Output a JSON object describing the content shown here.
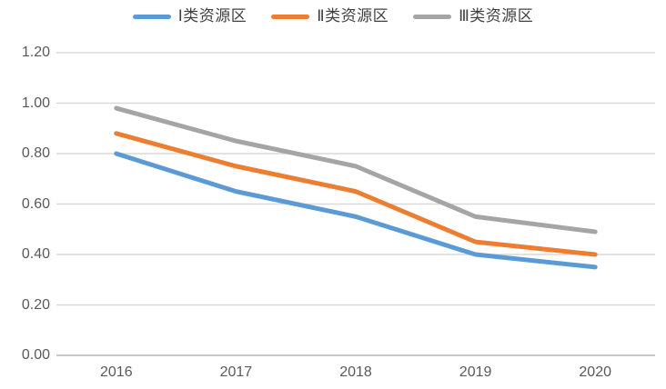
{
  "chart_data": {
    "type": "line",
    "title": "",
    "xlabel": "",
    "ylabel": "",
    "categories": [
      "2016",
      "2017",
      "2018",
      "2019",
      "2020"
    ],
    "series": [
      {
        "name": "Ⅰ类资源区",
        "color": "#5B9BD5",
        "values": [
          0.8,
          0.65,
          0.55,
          0.4,
          0.35
        ]
      },
      {
        "name": "Ⅱ类资源区",
        "color": "#ED7D31",
        "values": [
          0.88,
          0.75,
          0.65,
          0.45,
          0.4
        ]
      },
      {
        "name": "Ⅲ类资源区",
        "color": "#A5A5A5",
        "values": [
          0.98,
          0.85,
          0.75,
          0.55,
          0.49
        ]
      }
    ],
    "ylim": [
      0.0,
      1.2
    ],
    "ytick_step": 0.2,
    "ytick_labels": [
      "0.00",
      "0.20",
      "0.40",
      "0.60",
      "0.80",
      "1.00",
      "1.20"
    ],
    "grid": "horizontal-on",
    "legend_position": "top",
    "colors": {
      "grid_line": "#D9D9D9",
      "axis_line": "#BFBFBF",
      "tick_label": "#595959",
      "legend_text": "#404040",
      "background": "#FFFFFF"
    }
  }
}
